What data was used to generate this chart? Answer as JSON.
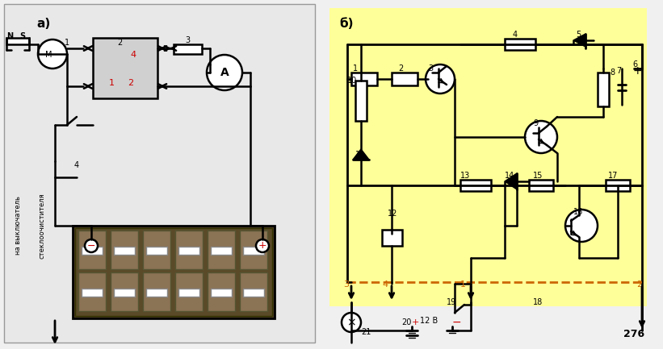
{
  "bg_color": "#f0f0f0",
  "yellow_bg": "#ffff99",
  "title": "",
  "fig_width": 8.21,
  "fig_height": 4.33,
  "dpi": 100,
  "label_a": "a)",
  "label_b": "б)",
  "label_276": "276",
  "text_color_black": "#000000",
  "text_color_red": "#cc0000",
  "text_color_orange": "#cc6600",
  "battery_label_minus": "−",
  "battery_label_plus": "+",
  "side_text_1": "на выключатель",
  "side_text_2": "стеклоочистителя"
}
